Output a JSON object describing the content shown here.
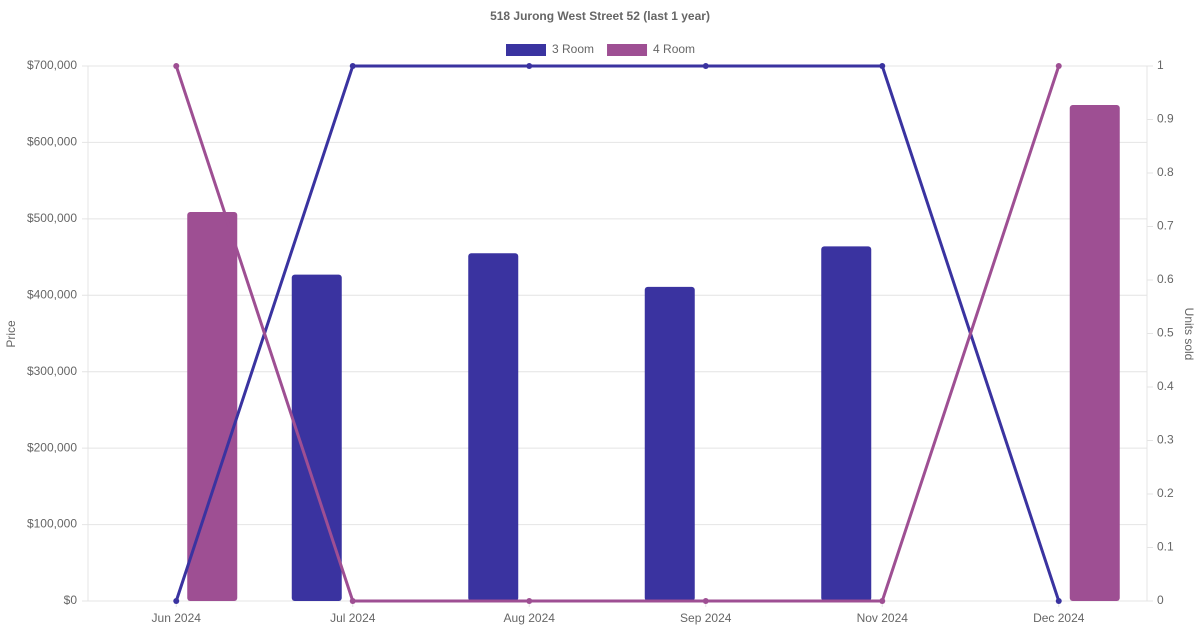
{
  "chart_data": {
    "type": "bar",
    "title": "518 Jurong West Street 52 (last 1 year)",
    "y_label": "Price",
    "y2_label": "Units sold",
    "categories": [
      "Jun 2024",
      "Jul 2024",
      "Aug 2024",
      "Sep 2024",
      "Nov 2024",
      "Dec 2024"
    ],
    "series": [
      {
        "name": "3 Room",
        "color": "#3a33a0",
        "values": [
          null,
          427000,
          455000,
          411000,
          464000,
          null
        ],
        "units": [
          0,
          1,
          1,
          1,
          1,
          0
        ]
      },
      {
        "name": "4 Room",
        "color": "#9e4f93",
        "values": [
          509000,
          null,
          null,
          null,
          null,
          649000
        ],
        "units": [
          1,
          0,
          0,
          0,
          0,
          1
        ]
      }
    ],
    "ylim": [
      0,
      700000
    ],
    "yticks": [
      {
        "value": 0,
        "label": "$0"
      },
      {
        "value": 100000,
        "label": "$100,000"
      },
      {
        "value": 200000,
        "label": "$200,000"
      },
      {
        "value": 300000,
        "label": "$300,000"
      },
      {
        "value": 400000,
        "label": "$400,000"
      },
      {
        "value": 500000,
        "label": "$500,000"
      },
      {
        "value": 600000,
        "label": "$600,000"
      },
      {
        "value": 700000,
        "label": "$700,000"
      }
    ],
    "y2lim": [
      0,
      1
    ],
    "y2ticks": [
      0,
      0.1,
      0.2,
      0.3,
      0.4,
      0.5,
      0.6,
      0.7,
      0.8,
      0.9,
      1
    ],
    "grid": true,
    "legend": "top"
  }
}
